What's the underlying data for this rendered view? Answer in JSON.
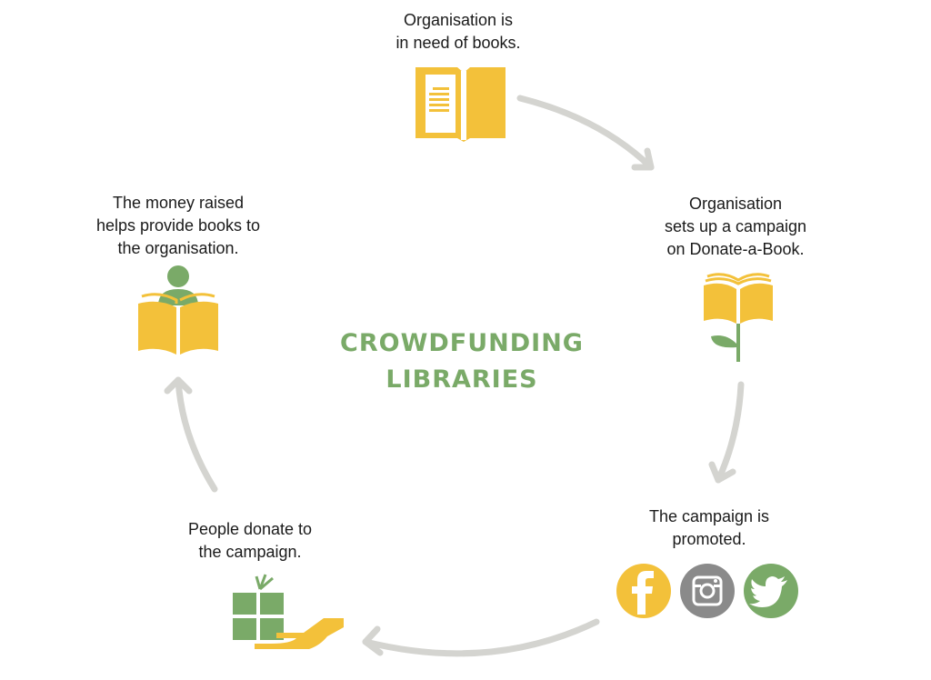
{
  "title": {
    "line1": "CROWDFUNDING",
    "line2": "LIBRARIES"
  },
  "steps": [
    {
      "line1": "Organisation is",
      "line2": "in need of books.",
      "icon": "open-book-icon"
    },
    {
      "line1": "Organisation",
      "line2": "sets up a campaign",
      "line3": "on Donate-a-Book.",
      "icon": "book-sprout-icon"
    },
    {
      "line1": "The campaign is",
      "line2": "promoted.",
      "icon": "social-media-icons"
    },
    {
      "line1": "People donate to",
      "line2": "the campaign.",
      "icon": "gift-hand-icon"
    },
    {
      "line1": "The money raised",
      "line2": "helps provide books to",
      "line3": "the organisation.",
      "icon": "reader-book-icon"
    }
  ],
  "colors": {
    "yellow": "#f3c13a",
    "green": "#7aaa68",
    "gray": "#8a8a8a",
    "arrow": "#d4d4d0",
    "text": "#1a1a1a"
  }
}
